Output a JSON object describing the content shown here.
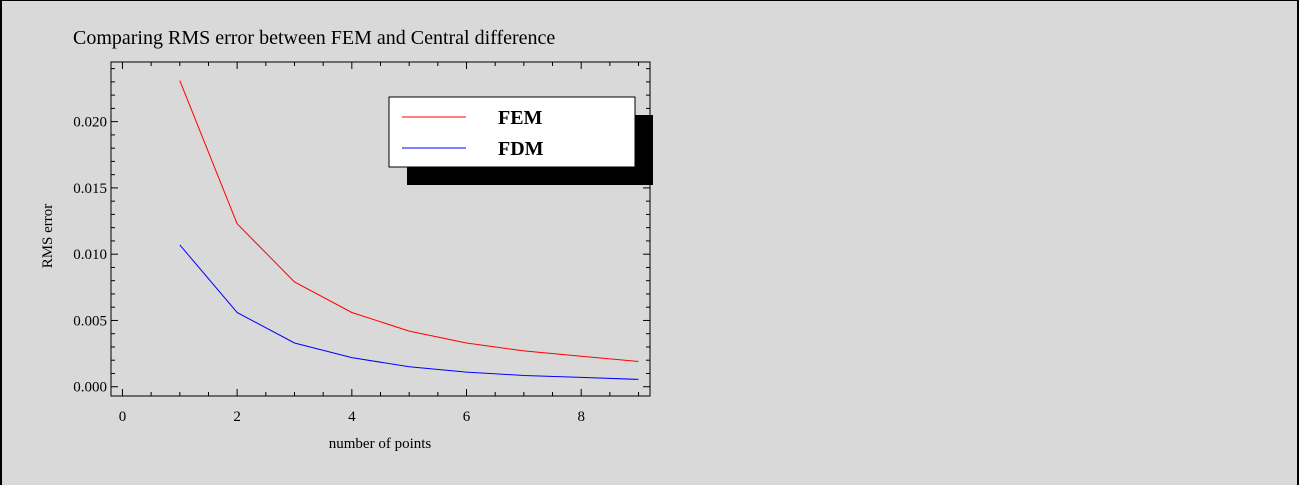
{
  "chart_data": {
    "type": "line",
    "title": "Comparing RMS error between FEM and Central difference",
    "xlabel": "number of points",
    "ylabel": "RMS error",
    "xlim": [
      -0.2,
      9.2
    ],
    "ylim": [
      -0.0007,
      0.0245
    ],
    "x_ticks": [
      0,
      2,
      4,
      6,
      8
    ],
    "x_tick_labels": [
      "0",
      "2",
      "4",
      "6",
      "8"
    ],
    "y_ticks": [
      0.0,
      0.005,
      0.01,
      0.015,
      0.02
    ],
    "y_tick_labels": [
      "0.000",
      "0.005",
      "0.010",
      "0.015",
      "0.020"
    ],
    "x": [
      1,
      2,
      3,
      4,
      5,
      6,
      7,
      8,
      9
    ],
    "series": [
      {
        "name": "FEM",
        "color": "#ff0000",
        "values": [
          0.0231,
          0.0123,
          0.0079,
          0.0056,
          0.0042,
          0.0033,
          0.0027,
          0.0023,
          0.0019
        ]
      },
      {
        "name": "FDM",
        "color": "#0000ff",
        "values": [
          0.0107,
          0.0056,
          0.0033,
          0.0022,
          0.0015,
          0.0011,
          0.00085,
          0.0007,
          0.00055
        ]
      }
    ],
    "legend": {
      "placement": "top-right",
      "shadow": true
    },
    "grid": false
  }
}
